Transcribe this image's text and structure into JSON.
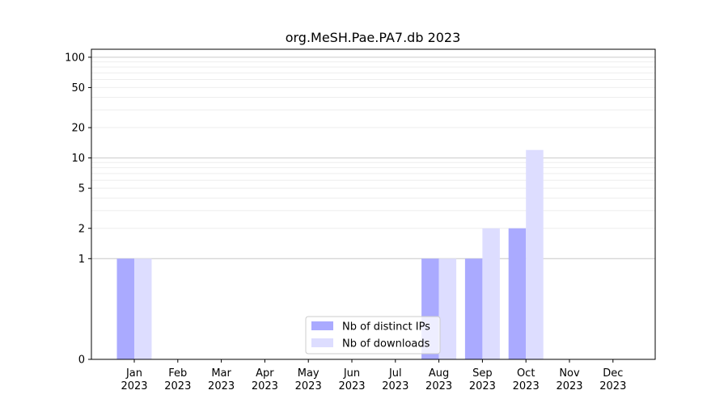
{
  "chart_data": {
    "type": "bar",
    "title": "org.MeSH.Pae.PA7.db 2023",
    "xlabel": "",
    "ylabel": "",
    "y_scale": "symlog",
    "ylim": [
      0,
      120
    ],
    "grid": true,
    "legend_position": "lower-center",
    "categories": [
      "Jan\n2023",
      "Feb\n2023",
      "Mar\n2023",
      "Apr\n2023",
      "May\n2023",
      "Jun\n2023",
      "Jul\n2023",
      "Aug\n2023",
      "Sep\n2023",
      "Oct\n2023",
      "Nov\n2023",
      "Dec\n2023"
    ],
    "y_ticks": [
      {
        "value": 0,
        "label": "0"
      },
      {
        "value": 1,
        "label": "1"
      },
      {
        "value": 2,
        "label": "2"
      },
      {
        "value": 5,
        "label": "5"
      },
      {
        "value": 10,
        "label": "10"
      },
      {
        "value": 20,
        "label": "20"
      },
      {
        "value": 50,
        "label": "50"
      },
      {
        "value": 100,
        "label": "100"
      }
    ],
    "series": [
      {
        "name": "Nb of distinct IPs",
        "color": "#aaaaff",
        "values": [
          1,
          0,
          0,
          0,
          0,
          0,
          0,
          1,
          1,
          2,
          0,
          0
        ]
      },
      {
        "name": "Nb of downloads",
        "color": "#ddddff",
        "values": [
          1,
          0,
          0,
          0,
          0,
          0,
          0,
          1,
          2,
          12,
          0,
          0
        ]
      }
    ]
  }
}
